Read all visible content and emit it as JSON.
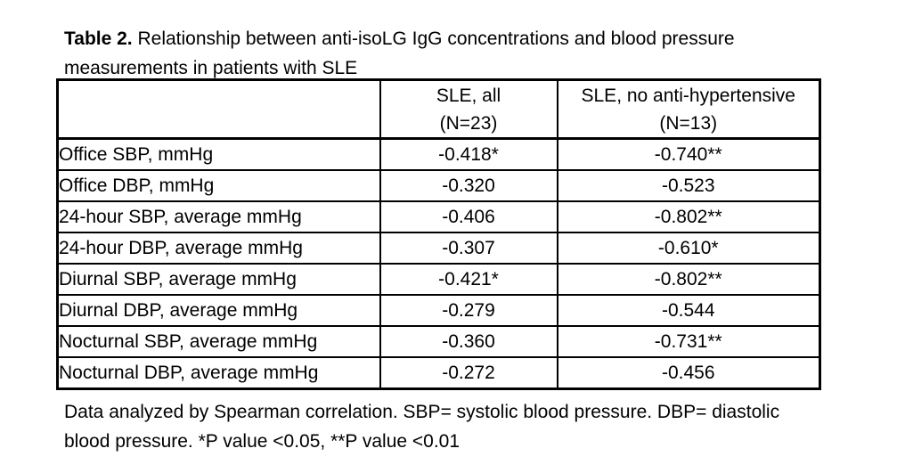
{
  "caption": {
    "label": "Table 2.",
    "line1_rest": " Relationship between anti-isoLG IgG concentrations and blood pressure",
    "line2": "measurements in patients with SLE"
  },
  "table": {
    "header": {
      "corner": "",
      "col2_line1": "SLE, all",
      "col2_line2": "(N=23)",
      "col3_line1": "SLE, no anti-hypertensive",
      "col3_line2": "(N=13)"
    },
    "rows": [
      {
        "label": "Office SBP, mmHg",
        "sle_all": "-0.418*",
        "sle_no_anti": "-0.740**"
      },
      {
        "label": "Office DBP, mmHg",
        "sle_all": "-0.320",
        "sle_no_anti": "-0.523"
      },
      {
        "label": "24-hour SBP, average mmHg",
        "sle_all": "-0.406",
        "sle_no_anti": "-0.802**"
      },
      {
        "label": "24-hour DBP, average mmHg",
        "sle_all": "-0.307",
        "sle_no_anti": "-0.610*"
      },
      {
        "label": "Diurnal SBP, average mmHg",
        "sle_all": "-0.421*",
        "sle_no_anti": "-0.802**"
      },
      {
        "label": "Diurnal DBP, average mmHg",
        "sle_all": "-0.279",
        "sle_no_anti": "-0.544"
      },
      {
        "label": "Nocturnal SBP, average mmHg",
        "sle_all": "-0.360",
        "sle_no_anti": "-0.731**"
      },
      {
        "label": "Nocturnal DBP, average mmHg",
        "sle_all": "-0.272",
        "sle_no_anti": "-0.456"
      }
    ]
  },
  "footnote": {
    "line1": "Data analyzed by Spearman correlation. SBP= systolic blood pressure. DBP= diastolic",
    "line2": "blood pressure. *P value <0.05, **P value <0.01"
  },
  "chart_data": {
    "type": "table",
    "title": "Table 2. Relationship between anti-isoLG IgG concentrations and blood pressure measurements in patients with SLE",
    "columns": [
      "",
      "SLE, all (N=23)",
      "SLE, no anti-hypertensive (N=13)"
    ],
    "rows": [
      [
        "Office SBP, mmHg",
        "-0.418*",
        "-0.740**"
      ],
      [
        "Office DBP, mmHg",
        "-0.320",
        "-0.523"
      ],
      [
        "24-hour SBP, average mmHg",
        "-0.406",
        "-0.802**"
      ],
      [
        "24-hour DBP, average mmHg",
        "-0.307",
        "-0.610*"
      ],
      [
        "Diurnal SBP, average mmHg",
        "-0.421*",
        "-0.802**"
      ],
      [
        "Diurnal DBP, average mmHg",
        "-0.279",
        "-0.544"
      ],
      [
        "Nocturnal SBP, average mmHg",
        "-0.360",
        "-0.731**"
      ],
      [
        "Nocturnal DBP, average mmHg",
        "-0.272",
        "-0.456"
      ]
    ],
    "footnote": "Data analyzed by Spearman correlation. SBP= systolic blood pressure. DBP= diastolic blood pressure. *P value <0.05, **P value <0.01"
  }
}
